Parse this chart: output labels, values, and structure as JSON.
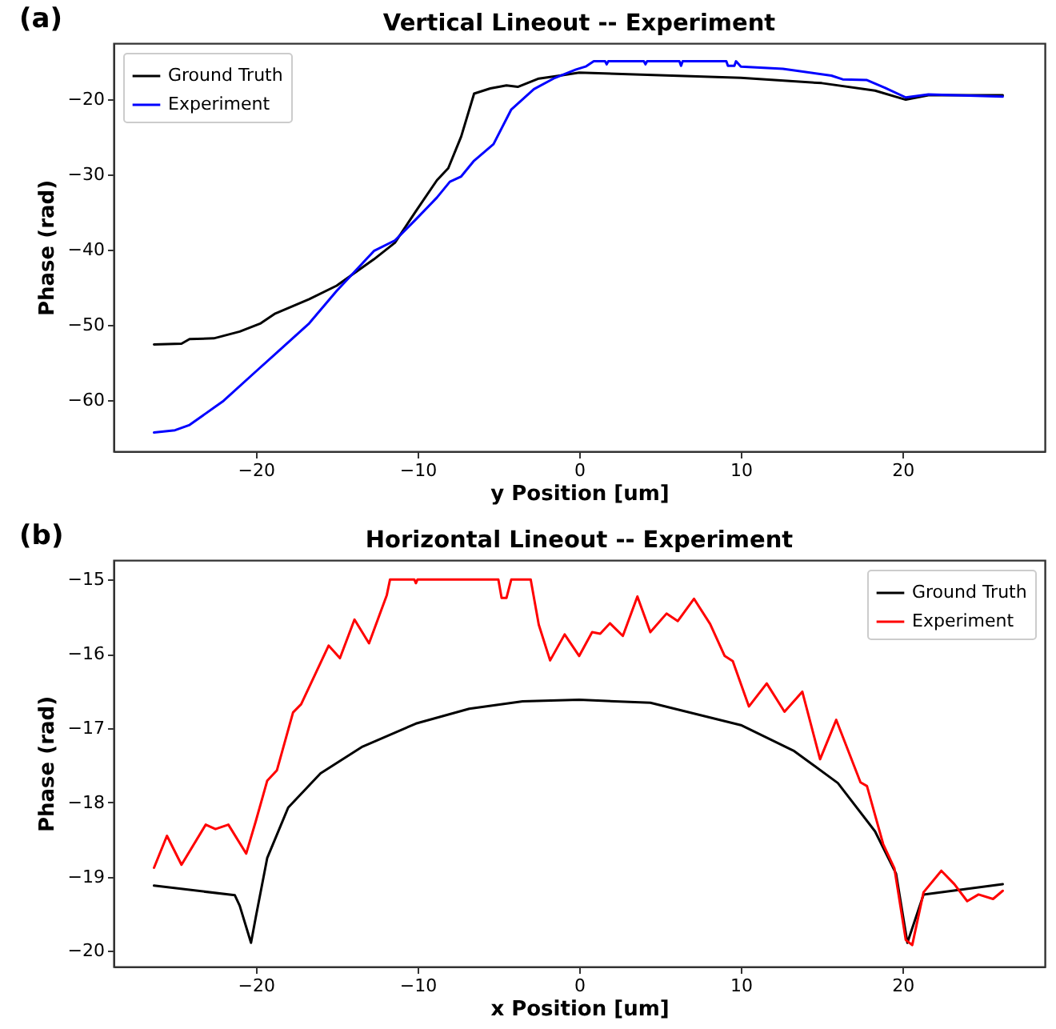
{
  "chart_data": [
    {
      "type": "line",
      "title": "Vertical Lineout -- Experiment",
      "xlabel": "y Position [um]",
      "ylabel": "Phase (rad)",
      "annotations": [
        "(a)"
      ],
      "xlim": [
        -28.8,
        28.8
      ],
      "ylim": [
        -66.8,
        -12.6
      ],
      "xticks": [
        -20,
        -10,
        0,
        10,
        20
      ],
      "yticks": [
        -60,
        -50,
        -40,
        -30,
        -20
      ],
      "grid": false,
      "legend": "top left",
      "line_style": "solid",
      "series": [
        {
          "name": "Ground Truth",
          "color": "#000000",
          "x": [
            -26.3,
            -24.6,
            -24.1,
            -22.6,
            -21.0,
            -19.7,
            -18.8,
            -16.7,
            -15.0,
            -12.7,
            -11.4,
            -10.1,
            -8.8,
            -8.1,
            -7.3,
            -6.5,
            -5.5,
            -4.5,
            -3.8,
            -2.5,
            -1.2,
            0,
            10,
            15,
            18.3,
            20.2,
            21.6,
            26.2
          ],
          "values": [
            -52.6,
            -52.5,
            -51.9,
            -51.8,
            -50.9,
            -49.8,
            -48.5,
            -46.6,
            -44.8,
            -41.3,
            -39.1,
            -34.9,
            -30.8,
            -29.2,
            -25.0,
            -19.3,
            -18.6,
            -18.2,
            -18.4,
            -17.3,
            -16.9,
            -16.5,
            -17.2,
            -17.9,
            -18.9,
            -20.1,
            -19.5,
            -19.5
          ]
        },
        {
          "name": "Experiment",
          "color": "#0000ff",
          "x": [
            -26.3,
            -25.0,
            -24.1,
            -22.0,
            -20.0,
            -18.7,
            -16.7,
            -15.0,
            -12.7,
            -11.4,
            -10.1,
            -8.8,
            -8.0,
            -7.3,
            -6.5,
            -5.3,
            -4.2,
            -2.8,
            -1.5,
            -0.2,
            0.4,
            0.9,
            1.6,
            1.7,
            1.8,
            4.0,
            4.1,
            4.2,
            6.2,
            6.3,
            6.4,
            9.1,
            9.2,
            9.3,
            9.6,
            9.7,
            10.0,
            12.6,
            15.6,
            16.3,
            17.8,
            18.9,
            20.2,
            21.6,
            26.2
          ],
          "values": [
            -64.3,
            -64.0,
            -63.3,
            -60.1,
            -56.2,
            -53.7,
            -49.8,
            -45.5,
            -40.2,
            -38.8,
            -36.0,
            -33.1,
            -31.0,
            -30.3,
            -28.2,
            -26.0,
            -21.4,
            -18.7,
            -17.2,
            -16.1,
            -15.7,
            -15.0,
            -15.0,
            -15.4,
            -15.0,
            -15.0,
            -15.4,
            -15.0,
            -15.0,
            -15.6,
            -15.0,
            -15.0,
            -15.6,
            -15.6,
            -15.6,
            -15.0,
            -15.7,
            -16.0,
            -16.9,
            -17.4,
            -17.5,
            -18.5,
            -19.8,
            -19.4,
            -19.7
          ]
        }
      ]
    },
    {
      "type": "line",
      "title": "Horizontal Lineout -- Experiment",
      "xlabel": "x Position [um]",
      "ylabel": "Phase (rad)",
      "annotations": [
        "(b)"
      ],
      "xlim": [
        -28.8,
        28.8
      ],
      "ylim": [
        -20.21,
        -14.74
      ],
      "xticks": [
        -20,
        -10,
        0,
        10,
        20
      ],
      "yticks": [
        -20,
        -19,
        -18,
        -17,
        -16,
        -15
      ],
      "grid": false,
      "legend": "top right",
      "line_style": "solid",
      "series": [
        {
          "name": "Ground Truth",
          "color": "#000000",
          "x": [
            -26.3,
            -21.3,
            -21.0,
            -20.3,
            -20.0,
            -19.3,
            -18.0,
            -16.0,
            -13.4,
            -10.1,
            -6.8,
            -3.5,
            0,
            4.4,
            10.0,
            13.3,
            16.0,
            18.3,
            19.6,
            20.3,
            21.3,
            26.2
          ],
          "values": [
            -19.12,
            -19.25,
            -19.39,
            -19.89,
            -19.54,
            -18.75,
            -18.07,
            -17.61,
            -17.25,
            -16.94,
            -16.74,
            -16.64,
            -16.62,
            -16.66,
            -16.96,
            -17.31,
            -17.74,
            -18.39,
            -18.96,
            -19.89,
            -19.24,
            -19.1
          ]
        },
        {
          "name": "Experiment",
          "color": "#ff0000",
          "x": [
            -26.3,
            -25.5,
            -24.6,
            -23.1,
            -22.5,
            -21.7,
            -20.6,
            -20.0,
            -19.3,
            -18.7,
            -17.7,
            -17.2,
            -15.5,
            -14.8,
            -13.9,
            -13.0,
            -11.9,
            -11.7,
            -10.2,
            -10.1,
            -10.0,
            -5.0,
            -4.8,
            -4.5,
            -4.2,
            -3.0,
            -2.5,
            -1.8,
            -0.9,
            0,
            0.8,
            1.3,
            1.9,
            2.7,
            3.6,
            4.4,
            5.4,
            6.1,
            7.1,
            8.1,
            9.0,
            9.5,
            10.5,
            11.6,
            12.7,
            13.8,
            14.9,
            15.9,
            17.4,
            17.8,
            18.8,
            19.5,
            20.2,
            20.6,
            21.3,
            22.4,
            23.2,
            24.0,
            24.7,
            25.6,
            26.2
          ],
          "values": [
            -18.88,
            -18.45,
            -18.84,
            -18.3,
            -18.36,
            -18.3,
            -18.69,
            -18.25,
            -17.71,
            -17.57,
            -16.79,
            -16.68,
            -15.89,
            -16.06,
            -15.54,
            -15.86,
            -15.21,
            -15.0,
            -15.0,
            -15.05,
            -15.0,
            -15.0,
            -15.25,
            -15.25,
            -15.0,
            -15.0,
            -15.61,
            -16.09,
            -15.74,
            -16.03,
            -15.71,
            -15.73,
            -15.59,
            -15.76,
            -15.23,
            -15.71,
            -15.46,
            -15.56,
            -15.26,
            -15.6,
            -16.03,
            -16.1,
            -16.71,
            -16.4,
            -16.78,
            -16.51,
            -17.42,
            -16.89,
            -17.73,
            -17.78,
            -18.56,
            -18.89,
            -19.85,
            -19.92,
            -19.21,
            -18.92,
            -19.1,
            -19.33,
            -19.24,
            -19.3,
            -19.19
          ]
        }
      ]
    }
  ]
}
